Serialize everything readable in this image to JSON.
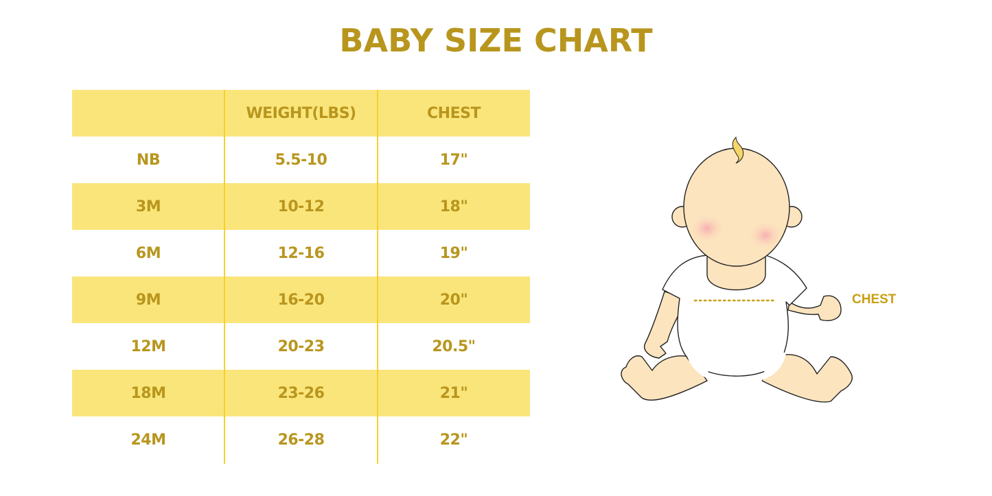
{
  "title": "BABY SIZE CHART",
  "table": {
    "headers": [
      "",
      "WEIGHT(LBS)",
      "CHEST"
    ],
    "rows": [
      [
        "NB",
        "5.5-10",
        "17\""
      ],
      [
        "3M",
        "10-12",
        "18\""
      ],
      [
        "6M",
        "12-16",
        "19\""
      ],
      [
        "9M",
        "16-20",
        "20\""
      ],
      [
        "12M",
        "20-23",
        "20.5\""
      ],
      [
        "18M",
        "23-26",
        "21\""
      ],
      [
        "24M",
        "26-28",
        "22\""
      ]
    ]
  },
  "illustration": {
    "chest_label": "CHEST"
  },
  "colors": {
    "text": "#B8961E",
    "stripe": "#FAE57A",
    "divider": "#F7CF2A",
    "skin": "#FCE4BE"
  }
}
